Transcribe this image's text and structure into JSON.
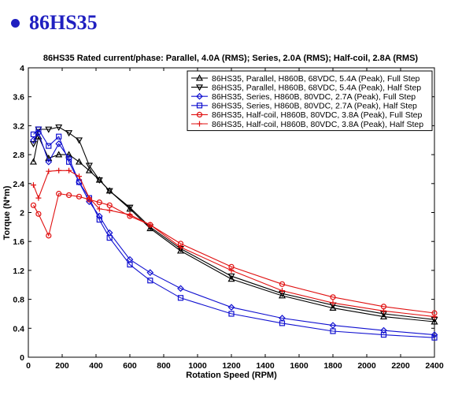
{
  "heading": {
    "bullet_icon": "filled-circle",
    "text": "86HS35",
    "color": "#1f1fc0"
  },
  "chart_data": {
    "type": "line",
    "title": "86HS35 Rated current/phase: Parallel, 4.0A (RMS); Series, 2.0A (RMS); Half-coil, 2.8A (RMS)",
    "xlabel": "Rotation Speed (RPM)",
    "ylabel": "Torque (N*m)",
    "xlim": [
      0,
      2400
    ],
    "ylim": [
      0,
      4
    ],
    "xticks": [
      0,
      200,
      400,
      600,
      800,
      1000,
      1200,
      1400,
      1600,
      1800,
      2000,
      2200,
      2400
    ],
    "yticks": [
      0,
      0.4,
      0.8,
      1.2,
      1.6,
      2,
      2.4,
      2.8,
      3.2,
      3.6,
      4
    ],
    "grid": false,
    "legend_position": "top-right",
    "series": [
      {
        "name": "86HS35, Parallel, H860B, 68VDC, 5.4A (Peak), Full Step",
        "color": "#000000",
        "marker": "triangle-up",
        "x": [
          30,
          60,
          120,
          180,
          240,
          300,
          360,
          420,
          480,
          600,
          720,
          900,
          1200,
          1500,
          1800,
          2100,
          2400
        ],
        "y": [
          2.7,
          3.05,
          2.75,
          2.8,
          2.8,
          2.7,
          2.58,
          2.45,
          2.3,
          2.05,
          1.78,
          1.47,
          1.08,
          0.85,
          0.68,
          0.56,
          0.49
        ]
      },
      {
        "name": "86HS35, Parallel, H860B, 68VDC, 5.4A (Peak), Half Step",
        "color": "#000000",
        "marker": "triangle-down",
        "x": [
          30,
          60,
          120,
          180,
          240,
          300,
          360,
          420,
          480,
          600,
          720,
          900,
          1200,
          1500,
          1800,
          2100,
          2400
        ],
        "y": [
          2.95,
          3.15,
          3.15,
          3.18,
          3.1,
          3.0,
          2.65,
          2.45,
          2.3,
          2.07,
          1.8,
          1.5,
          1.12,
          0.88,
          0.72,
          0.6,
          0.52
        ]
      },
      {
        "name": "86HS35, Series, H860B, 80VDC, 2.7A (Peak), Full Step",
        "color": "#1010d0",
        "marker": "diamond",
        "x": [
          30,
          60,
          120,
          180,
          240,
          300,
          360,
          420,
          480,
          600,
          720,
          900,
          1200,
          1500,
          1800,
          2100,
          2400
        ],
        "y": [
          3.0,
          3.1,
          2.7,
          2.95,
          2.75,
          2.42,
          2.15,
          1.95,
          1.72,
          1.35,
          1.17,
          0.95,
          0.69,
          0.54,
          0.44,
          0.37,
          0.31
        ]
      },
      {
        "name": "86HS35, Series, H860B, 80VDC, 2.7A (Peak), Half Step",
        "color": "#1010d0",
        "marker": "square",
        "x": [
          30,
          60,
          120,
          180,
          240,
          300,
          360,
          420,
          480,
          600,
          720,
          900,
          1200,
          1500,
          1800,
          2100,
          2400
        ],
        "y": [
          3.08,
          3.15,
          2.92,
          3.05,
          2.7,
          2.42,
          2.2,
          1.9,
          1.65,
          1.28,
          1.06,
          0.82,
          0.6,
          0.47,
          0.36,
          0.31,
          0.27
        ]
      },
      {
        "name": "86HS35, Half-coil, H860B, 80VDC, 3.8A (Peak), Full Step",
        "color": "#e01010",
        "marker": "circle",
        "x": [
          30,
          60,
          120,
          180,
          240,
          300,
          360,
          420,
          480,
          600,
          720,
          900,
          1200,
          1500,
          1800,
          2100,
          2400
        ],
        "y": [
          2.1,
          1.98,
          1.68,
          2.26,
          2.24,
          2.22,
          2.18,
          2.14,
          2.1,
          1.95,
          1.83,
          1.57,
          1.25,
          1.01,
          0.83,
          0.7,
          0.61
        ]
      },
      {
        "name": "86HS35, Half-coil, H860B, 80VDC, 3.8A (Peak), Half Step",
        "color": "#e01010",
        "marker": "plus",
        "x": [
          30,
          60,
          120,
          180,
          240,
          300,
          360,
          420,
          480,
          600,
          720,
          900,
          1200,
          1500,
          1800,
          2100,
          2400
        ],
        "y": [
          2.38,
          2.2,
          2.57,
          2.58,
          2.58,
          2.5,
          2.2,
          2.05,
          2.03,
          1.97,
          1.83,
          1.52,
          1.2,
          0.92,
          0.75,
          0.64,
          0.56
        ]
      }
    ]
  }
}
